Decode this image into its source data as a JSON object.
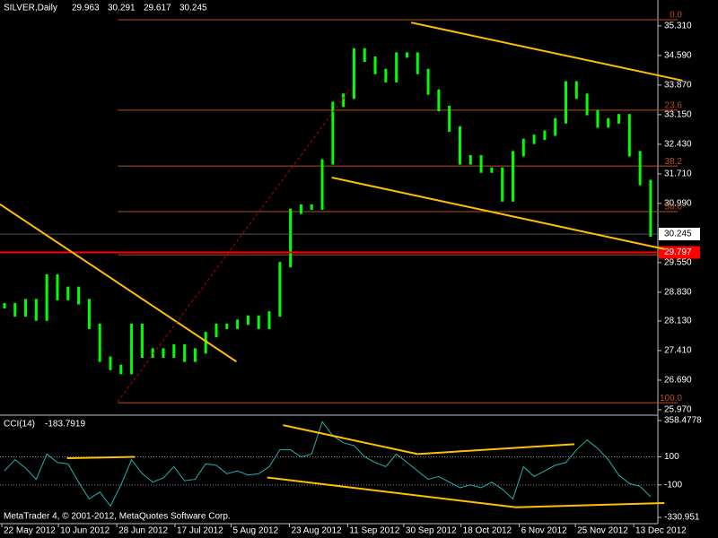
{
  "chart_data": [
    {
      "type": "candles",
      "title": "SILVER,Daily",
      "ohlc": [
        {
          "value": 29.963,
          "label": "29.963"
        },
        {
          "value": 30.291,
          "label": "30.291"
        },
        {
          "value": 29.617,
          "label": "29.617"
        },
        {
          "value": 30.245,
          "label": "30.245"
        }
      ],
      "color": "#00ff00",
      "values": [
        28.5,
        28.3,
        28.6,
        28.2,
        29.2,
        28.7,
        28.9,
        28.6,
        28.0,
        27.2,
        27.0,
        26.9,
        28.0,
        27.3,
        27.4,
        27.3,
        27.5,
        27.2,
        27.4,
        27.8,
        28.0,
        28.0,
        28.1,
        28.2,
        28.0,
        28.3,
        29.5,
        30.8,
        30.9,
        30.9,
        32.0,
        33.4,
        33.6,
        34.7,
        34.5,
        34.2,
        34.0,
        34.6,
        34.6,
        34.2,
        33.7,
        33.3,
        32.8,
        32.0,
        32.1,
        31.8,
        31.8,
        31.1,
        32.2,
        32.5,
        32.6,
        32.7,
        33.0,
        33.9,
        33.6,
        33.2,
        32.9,
        33.0,
        33.1,
        32.2,
        31.5,
        30.245
      ],
      "xlim": [
        -0.42,
        61.6
      ],
      "xticks": [
        {
          "value": -0.25,
          "label": "22 May 2012"
        },
        {
          "value": 5.1,
          "label": "10 Jun 2012"
        },
        {
          "value": 10.6,
          "label": "28 Jun 2012"
        },
        {
          "value": 16.1,
          "label": "17 Jul 2012"
        },
        {
          "value": 21.4,
          "label": "5 Aug 2012"
        },
        {
          "value": 26.9,
          "label": "23 Aug 2012"
        },
        {
          "value": 32.4,
          "label": "11 Sep 2012"
        },
        {
          "value": 37.7,
          "label": "30 Sep 2012"
        },
        {
          "value": 43.1,
          "label": "18 Oct 2012"
        },
        {
          "value": 48.6,
          "label": "6 Nov 2012"
        },
        {
          "value": 53.9,
          "label": "25 Nov 2012"
        },
        {
          "value": 59.4,
          "label": "13 Dec 2012"
        }
      ],
      "ylim": [
        25.86,
        35.94
      ],
      "yticks": [
        {
          "value": 35.31,
          "label": "35.310"
        },
        {
          "value": 34.59,
          "label": "34.590"
        },
        {
          "value": 33.87,
          "label": "33.870"
        },
        {
          "value": 33.15,
          "label": "33.150"
        },
        {
          "value": 32.43,
          "label": "32.430"
        },
        {
          "value": 31.71,
          "label": "31.710"
        },
        {
          "value": 30.99,
          "label": "30.990"
        },
        {
          "value": 29.55,
          "label": "29.550"
        },
        {
          "value": 28.83,
          "label": "28.830"
        },
        {
          "value": 28.13,
          "label": "28.130"
        },
        {
          "value": 27.41,
          "label": "27.410"
        },
        {
          "value": 26.69,
          "label": "26.690"
        },
        {
          "value": 25.97,
          "label": "25.970"
        }
      ],
      "last_price": {
        "value": 30.245,
        "label": "30.245"
      },
      "red_line": {
        "value": 29.797,
        "label": "29.797"
      },
      "fibo_color": "#b4501e",
      "fibo": [
        {
          "label": "0.0",
          "price": 35.46
        },
        {
          "label": "23.6",
          "price": 33.26
        },
        {
          "label": "38.2",
          "price": 31.9
        },
        {
          "label": "50.0",
          "price": 30.79
        },
        {
          "label": "61.8",
          "price": 29.74
        },
        {
          "label": "100.0",
          "price": 26.14
        }
      ],
      "fibo_start": 10.7,
      "trendlines": [
        {
          "x": [
            -0.42,
            21.9
          ],
          "y": [
            30.97,
            27.14
          ],
          "color": "#ffc000"
        },
        {
          "x": [
            38.4,
            64.0
          ],
          "y": [
            35.39,
            33.98
          ],
          "color": "#ffc000"
        },
        {
          "x": [
            30.9,
            62.3
          ],
          "y": [
            31.62,
            29.88
          ],
          "color": "#ffc000"
        },
        {
          "x": [
            10.7,
            32.6
          ],
          "y": [
            26.17,
            33.76
          ],
          "color": "#c00000",
          "dashed": true
        }
      ]
    },
    {
      "type": "line",
      "title": "CCI(14)",
      "current": {
        "value": -183.7919,
        "label": "-183.7919"
      },
      "color": "#20b2aa",
      "values": [
        0,
        80,
        20,
        -60,
        120,
        60,
        50,
        -80,
        -200,
        -150,
        -250,
        -100,
        80,
        -20,
        -80,
        -50,
        30,
        -70,
        -60,
        50,
        40,
        -20,
        0,
        -30,
        -20,
        30,
        150,
        150,
        100,
        120,
        350,
        250,
        200,
        180,
        100,
        60,
        30,
        120,
        60,
        0,
        -60,
        -40,
        -80,
        -120,
        -100,
        -120,
        -80,
        -130,
        -200,
        30,
        -40,
        0,
        40,
        60,
        150,
        220,
        160,
        80,
        -30,
        -90,
        -110,
        -184
      ],
      "ylim": [
        -375.6,
        390.4
      ],
      "yticks": [
        358.4778,
        100,
        -100,
        -330.951
      ],
      "levels": [
        100,
        -100
      ],
      "trendlines": [
        {
          "x": [
            5.9,
            12.3
          ],
          "y": [
            90,
            100
          ],
          "color": "#ffc000"
        },
        {
          "x": [
            26.3,
            39.0
          ],
          "y": [
            326,
            120
          ],
          "color": "#ffc000"
        },
        {
          "x": [
            39.0,
            53.8
          ],
          "y": [
            120,
            190
          ],
          "color": "#ffc000"
        },
        {
          "x": [
            24.8,
            48.3
          ],
          "y": [
            -47,
            -259
          ],
          "color": "#ffc000"
        },
        {
          "x": [
            48.3,
            62.3
          ],
          "y": [
            -259,
            -229
          ],
          "color": "#ffc000"
        }
      ]
    }
  ],
  "footer": "MetaTrader 4, © 2001-2012, MetaQuotes Software Corp."
}
